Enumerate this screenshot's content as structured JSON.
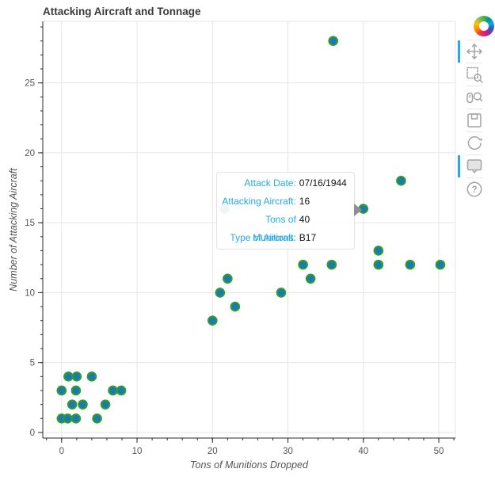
{
  "chart_data": {
    "type": "scatter",
    "title": "Attacking Aircraft and Tonnage",
    "xlabel": "Tons of Munitions Dropped",
    "ylabel": "Number of Attacking Aircraft",
    "x_ticks": [
      0,
      10,
      20,
      30,
      40,
      50
    ],
    "y_ticks": [
      0,
      5,
      10,
      15,
      20,
      25
    ],
    "x_minor_step": 2,
    "y_minor_step": 1,
    "x_range": [
      -2.5,
      52.2
    ],
    "y_range": [
      -0.4,
      29.4
    ],
    "grid": true,
    "legend": "none",
    "marker": {
      "fill": "#1f77b4",
      "stroke": "#2ca02c"
    },
    "points": [
      {
        "x": 0,
        "y": 1
      },
      {
        "x": 0.8,
        "y": 1
      },
      {
        "x": 1.9,
        "y": 1
      },
      {
        "x": 4.7,
        "y": 1
      },
      {
        "x": 1.4,
        "y": 2
      },
      {
        "x": 2.8,
        "y": 2
      },
      {
        "x": 5.8,
        "y": 2
      },
      {
        "x": 0,
        "y": 3
      },
      {
        "x": 1.9,
        "y": 3
      },
      {
        "x": 6.8,
        "y": 3
      },
      {
        "x": 7.9,
        "y": 3
      },
      {
        "x": 0.9,
        "y": 4
      },
      {
        "x": 2,
        "y": 4
      },
      {
        "x": 4,
        "y": 4
      },
      {
        "x": 20,
        "y": 8
      },
      {
        "x": 23,
        "y": 9
      },
      {
        "x": 21,
        "y": 10
      },
      {
        "x": 29.1,
        "y": 10
      },
      {
        "x": 22,
        "y": 11
      },
      {
        "x": 33,
        "y": 11
      },
      {
        "x": 32,
        "y": 12
      },
      {
        "x": 35.8,
        "y": 12
      },
      {
        "x": 42,
        "y": 12
      },
      {
        "x": 46.2,
        "y": 12
      },
      {
        "x": 50.2,
        "y": 12
      },
      {
        "x": 42,
        "y": 13
      },
      {
        "x": 21.6,
        "y": 16,
        "state": "occluded-by-tooltip"
      },
      {
        "x": 40,
        "y": 16,
        "state": "hovered"
      },
      {
        "x": 45,
        "y": 18
      },
      {
        "x": 36,
        "y": 28
      }
    ]
  },
  "tooltip": {
    "rows": [
      {
        "label": "Attack Date:",
        "value": "07/16/1944"
      },
      {
        "label": "Attacking Aircraft:",
        "value": "16"
      },
      {
        "label": "Tons of Munitions:",
        "value": "40"
      },
      {
        "label": "Type of Aircraft:",
        "value": "B17"
      }
    ],
    "label_color": "#26aae1"
  },
  "toolbar": {
    "logo": "bokeh-logo",
    "active_color": "#26aae1",
    "tools": [
      {
        "id": "pan",
        "label": "Pan",
        "active": true
      },
      {
        "id": "box-zoom",
        "label": "Box Zoom",
        "active": false
      },
      {
        "id": "wheel-zoom",
        "label": "Wheel Zoom",
        "active": false
      },
      {
        "id": "save",
        "label": "Save",
        "active": false
      },
      {
        "id": "reset",
        "label": "Reset",
        "active": false
      },
      {
        "id": "hover",
        "label": "Hover",
        "active": true
      },
      {
        "id": "help",
        "label": "Help",
        "active": false
      }
    ]
  },
  "colors": {
    "grid": "#e6e6e6",
    "outline": "#e5e5e5",
    "axis": "#2b2b2b",
    "tick_label": "#555555",
    "title": "#3b3b3b",
    "tooltip_arrow": "#8e9094",
    "toolbar_icon": "#a3a3a3"
  }
}
